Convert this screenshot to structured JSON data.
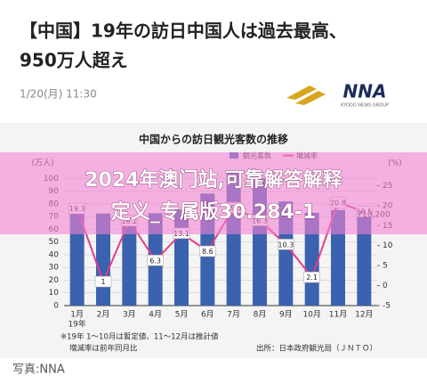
{
  "header": {
    "title_lines": [
      "【中国】19年の訪日中国人は過去最高、",
      "950万人超え"
    ],
    "date": "1/20(月) 11:30",
    "logo": "NNA",
    "logo_sub": "KYODO NEWS GROUP"
  },
  "chart_data": {
    "type": "bar",
    "title": "中国からの訪日観光客数の推移",
    "categories": [
      "1月",
      "2月",
      "3月",
      "4月",
      "5月",
      "6月",
      "7月",
      "8月",
      "9月",
      "10月",
      "11月",
      "12月"
    ],
    "year_label": "19年",
    "series": [
      {
        "name": "観光客数",
        "type": "bar",
        "color": "#3b62ae",
        "axis": "y",
        "values": [
          75.4,
          72.4,
          69.1,
          72.6,
          75.6,
          88.1,
          105.0,
          100.0,
          81.9,
          73.0,
          75.1,
          71.0
        ]
      },
      {
        "name": "増減率",
        "type": "line",
        "color": "#e23d8c",
        "axis": "y2",
        "values": [
          19.3,
          1.0,
          16.2,
          6.3,
          13.1,
          8.6,
          19.5,
          16.3,
          10.3,
          2.1,
          20.8,
          18.5
        ]
      }
    ],
    "y_label": "(万人)",
    "y2_label": "(%)",
    "ylim": [
      0,
      110
    ],
    "yticks": [
      0,
      10,
      20,
      30,
      40,
      50,
      60,
      70,
      80,
      90,
      100
    ],
    "y2lim": [
      -5,
      30
    ],
    "y2ticks": [
      -5,
      0,
      5,
      10,
      15,
      20,
      25
    ],
    "annotation": "710,200",
    "notes": [
      "※19年 1〜10月は暫定値、11〜12月は推計値",
      "増減率は前年同月比"
    ],
    "source": "出所：日本政府観光局（ＪＮＴＯ）"
  },
  "overlay": {
    "lines": [
      "2024年澳门站,可靠解答解释",
      "定义_专属版30.284-1"
    ]
  },
  "caption": "写真:NNA"
}
